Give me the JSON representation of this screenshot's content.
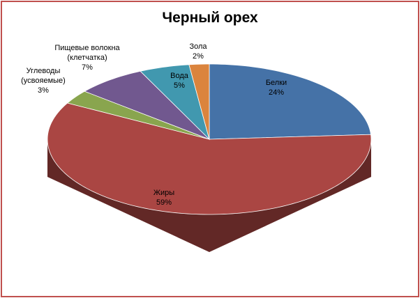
{
  "chart_data": {
    "type": "pie",
    "title": "Черный орех",
    "categories": [
      "Белки",
      "Жиры",
      "Углеводы (усвояемые)",
      "Пищевые волокна (клетчатка)",
      "Вода",
      "Зола"
    ],
    "values": [
      24,
      59,
      3,
      7,
      5,
      2
    ],
    "value_labels": [
      "24%",
      "59%",
      "3%",
      "7%",
      "5%",
      "2%"
    ],
    "colors": [
      "#4572a7",
      "#aa4643",
      "#89a54e",
      "#71588f",
      "#4198af",
      "#db843d"
    ]
  }
}
